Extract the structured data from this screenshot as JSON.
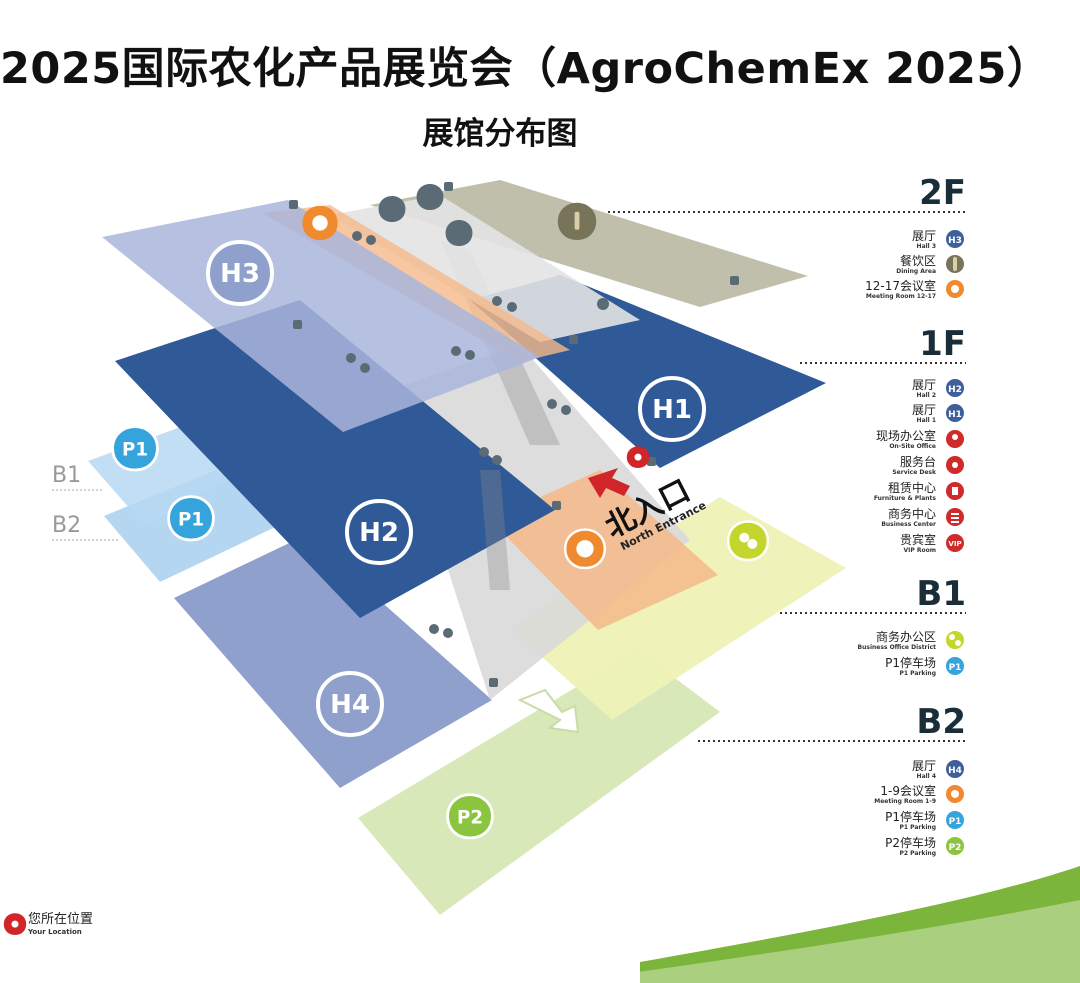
{
  "title": "2025国际农化产品展览会（AgroChemEx 2025）",
  "subtitle": "展馆分布图",
  "halls": {
    "h1": "H1",
    "h2": "H2",
    "h3": "H3",
    "h4": "H4"
  },
  "parking": {
    "p1_upper": "P1",
    "p1_lower": "P1",
    "p2": "P2"
  },
  "side_levels": {
    "b1": "B1",
    "b2": "B2"
  },
  "entrance": {
    "cn": "北入口",
    "en": "North Entrance"
  },
  "legend": {
    "floor_2f": {
      "label": "2F",
      "items": [
        {
          "cn": "展厅",
          "en": "Hall 3",
          "icon": "hall-badge",
          "badge": "H3",
          "color": "#3d5f9c"
        },
        {
          "cn": "餐饮区",
          "en": "Dining Area",
          "icon": "dining-icon",
          "color": "#77745a"
        },
        {
          "cn": "12-17会议室",
          "en": "Meeting Room 12-17",
          "icon": "meeting-icon",
          "color": "#ef8a2e"
        }
      ]
    },
    "floor_1f": {
      "label": "1F",
      "items": [
        {
          "cn": "展厅",
          "en": "Hall 2",
          "icon": "hall-badge",
          "badge": "H2",
          "color": "#3d5f9c"
        },
        {
          "cn": "展厅",
          "en": "Hall 1",
          "icon": "hall-badge",
          "badge": "H1",
          "color": "#3d5f9c"
        },
        {
          "cn": "现场办公室",
          "en": "On-Site Office",
          "icon": "office-icon",
          "color": "#cf2b2b"
        },
        {
          "cn": "服务台",
          "en": "Service Desk",
          "icon": "service-icon",
          "color": "#cf2b2b"
        },
        {
          "cn": "租赁中心",
          "en": "Furniture & Plants",
          "icon": "rental-icon",
          "color": "#cf2b2b"
        },
        {
          "cn": "商务中心",
          "en": "Business Center",
          "icon": "business-icon",
          "color": "#cf2b2b"
        },
        {
          "cn": "贵宾室",
          "en": "VIP Room",
          "icon": "vip-icon",
          "badge": "VIP",
          "color": "#cf2b2b"
        }
      ]
    },
    "floor_b1": {
      "label": "B1",
      "items": [
        {
          "cn": "商务办公区",
          "en": "Business Office District",
          "icon": "business-office-icon",
          "color": "#c4d62c"
        },
        {
          "cn": "P1停车场",
          "en": "P1 Parking",
          "icon": "parking-badge",
          "badge": "P1",
          "color": "#35a3dc"
        }
      ]
    },
    "floor_b2": {
      "label": "B2",
      "items": [
        {
          "cn": "展厅",
          "en": "Hall 4",
          "icon": "hall-badge",
          "badge": "H4",
          "color": "#3d5f9c"
        },
        {
          "cn": "1-9会议室",
          "en": "Meeting Room 1-9",
          "icon": "meeting-icon",
          "color": "#ef8a2e"
        },
        {
          "cn": "P1停车场",
          "en": "P1 Parking",
          "icon": "parking-badge",
          "badge": "P1",
          "color": "#35a3dc"
        },
        {
          "cn": "P2停车场",
          "en": "P2 Parking",
          "icon": "parking-badge",
          "badge": "P2",
          "color": "#8bc53f"
        }
      ]
    }
  },
  "your_location": {
    "cn": "您所在位置",
    "en": "Your Location"
  },
  "colors": {
    "hall_dark": "#2f5a97",
    "hall_light": "#8fa0cc",
    "hall3": "#a9b5dc",
    "dining": "#bdbca6",
    "parking_p1": "#a8cfee",
    "parking_p2": "#d6e7b5",
    "b1_office": "#eef2b6",
    "orange": "#f5b98a",
    "location_red": "#d0262a",
    "accent_green": "#7bb53b"
  }
}
